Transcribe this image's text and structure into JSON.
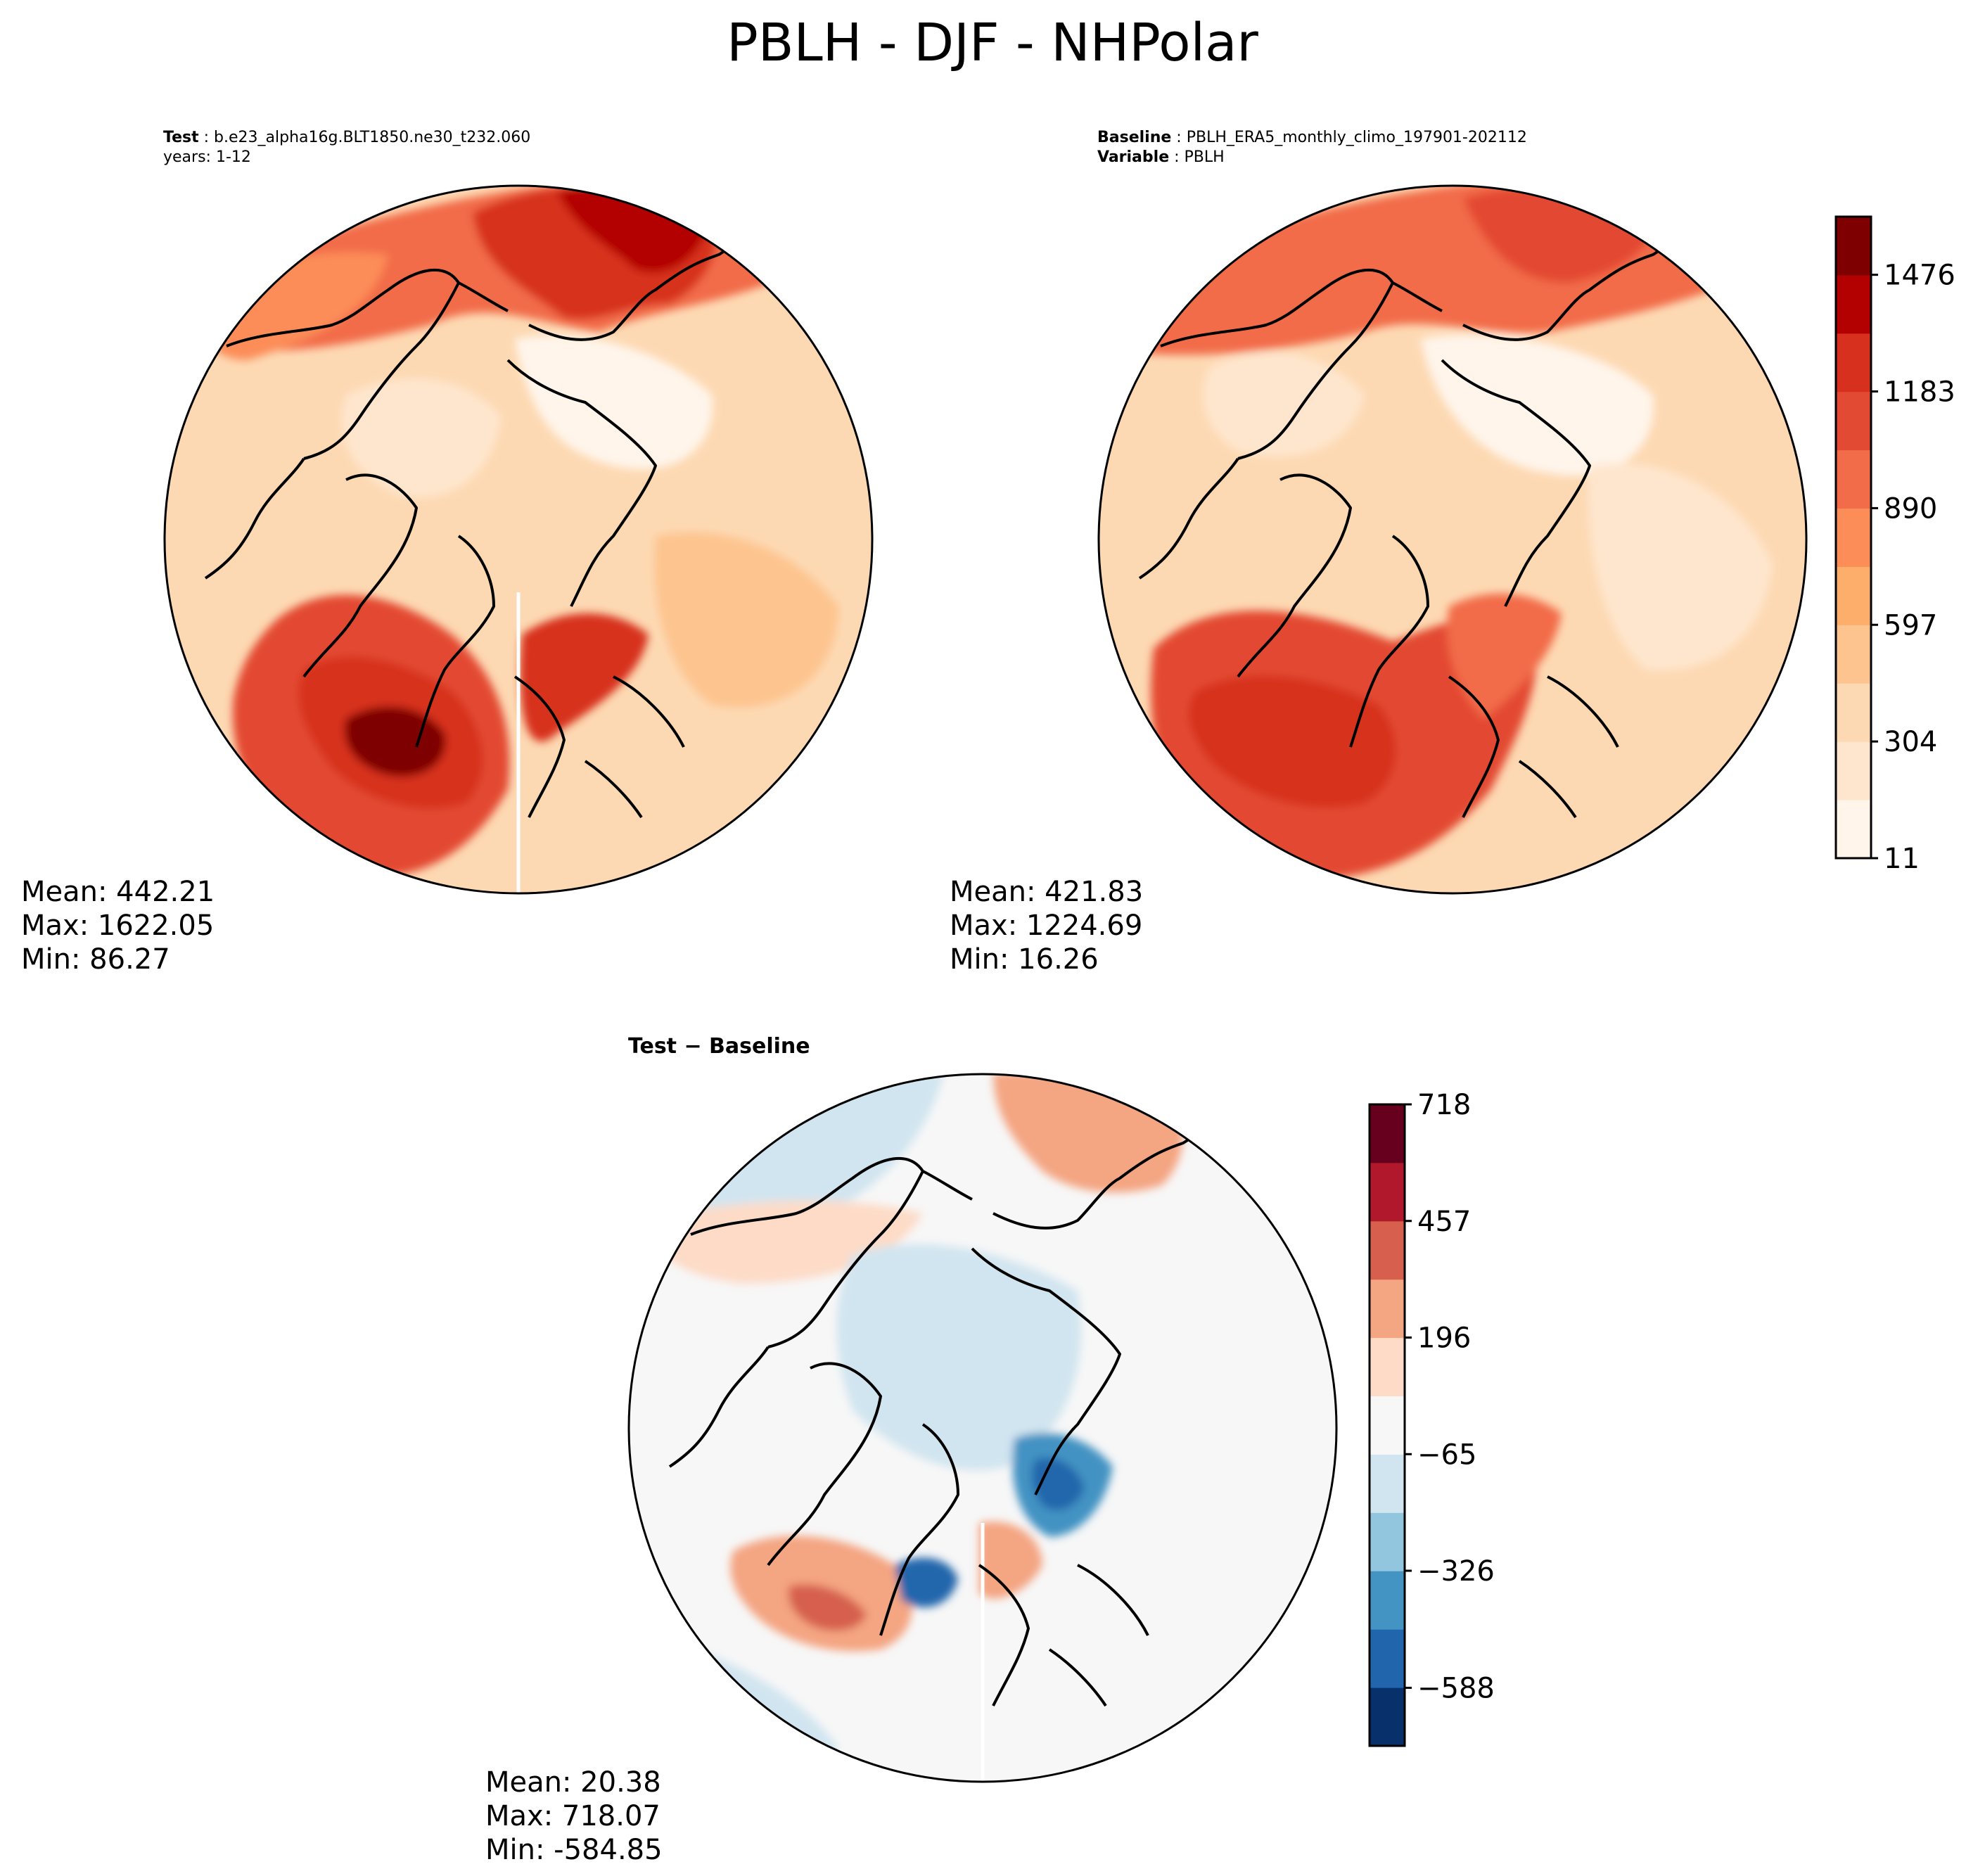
{
  "figure": {
    "title": "PBLH - DJF - NHPolar"
  },
  "test_panel": {
    "label": "Test",
    "case_name": "b.e23_alpha16g.BLT1850.ne30_t232.060",
    "years": "years: 1-12",
    "stats": {
      "mean": "Mean: 442.21",
      "max": "Max: 1622.05",
      "min": "Min: 86.27"
    }
  },
  "baseline_panel": {
    "label": "Baseline",
    "case_name": "PBLH_ERA5_monthly_climo_197901-202112",
    "variable_label": "Variable",
    "variable": "PBLH",
    "stats": {
      "mean": "Mean: 421.83",
      "max": "Max: 1224.69",
      "min": "Min: 16.26"
    }
  },
  "diff_panel": {
    "title": "Test − Baseline",
    "stats": {
      "mean": "Mean: 20.38",
      "max": "Max: 718.07",
      "min": "Min: -584.85"
    }
  },
  "colorbars": {
    "abs": {
      "tick_labels": [
        "11",
        "304",
        "597",
        "890",
        "1183",
        "1476"
      ],
      "tick_values": [
        11,
        304,
        597,
        890,
        1183,
        1476
      ],
      "levels_min": 11,
      "levels_max": 1622,
      "colors": [
        "#fff5eb",
        "#fee6ce",
        "#fdd9b3",
        "#fdc48f",
        "#fdae6b",
        "#fc8d59",
        "#f26c4a",
        "#e34a33",
        "#d7301f",
        "#b30000",
        "#7f0000"
      ]
    },
    "diff": {
      "tick_labels": [
        "−588",
        "−326",
        "−65",
        "196",
        "457",
        "718"
      ],
      "tick_values": [
        -588,
        -326,
        -65,
        196,
        457,
        718
      ],
      "levels_min": -718,
      "levels_max": 718,
      "colors": [
        "#08306b",
        "#2166ac",
        "#4393c3",
        "#92c5de",
        "#d1e5f0",
        "#f7f7f7",
        "#fddbc7",
        "#f4a582",
        "#d6604d",
        "#b2182b",
        "#67001f"
      ]
    }
  }
}
